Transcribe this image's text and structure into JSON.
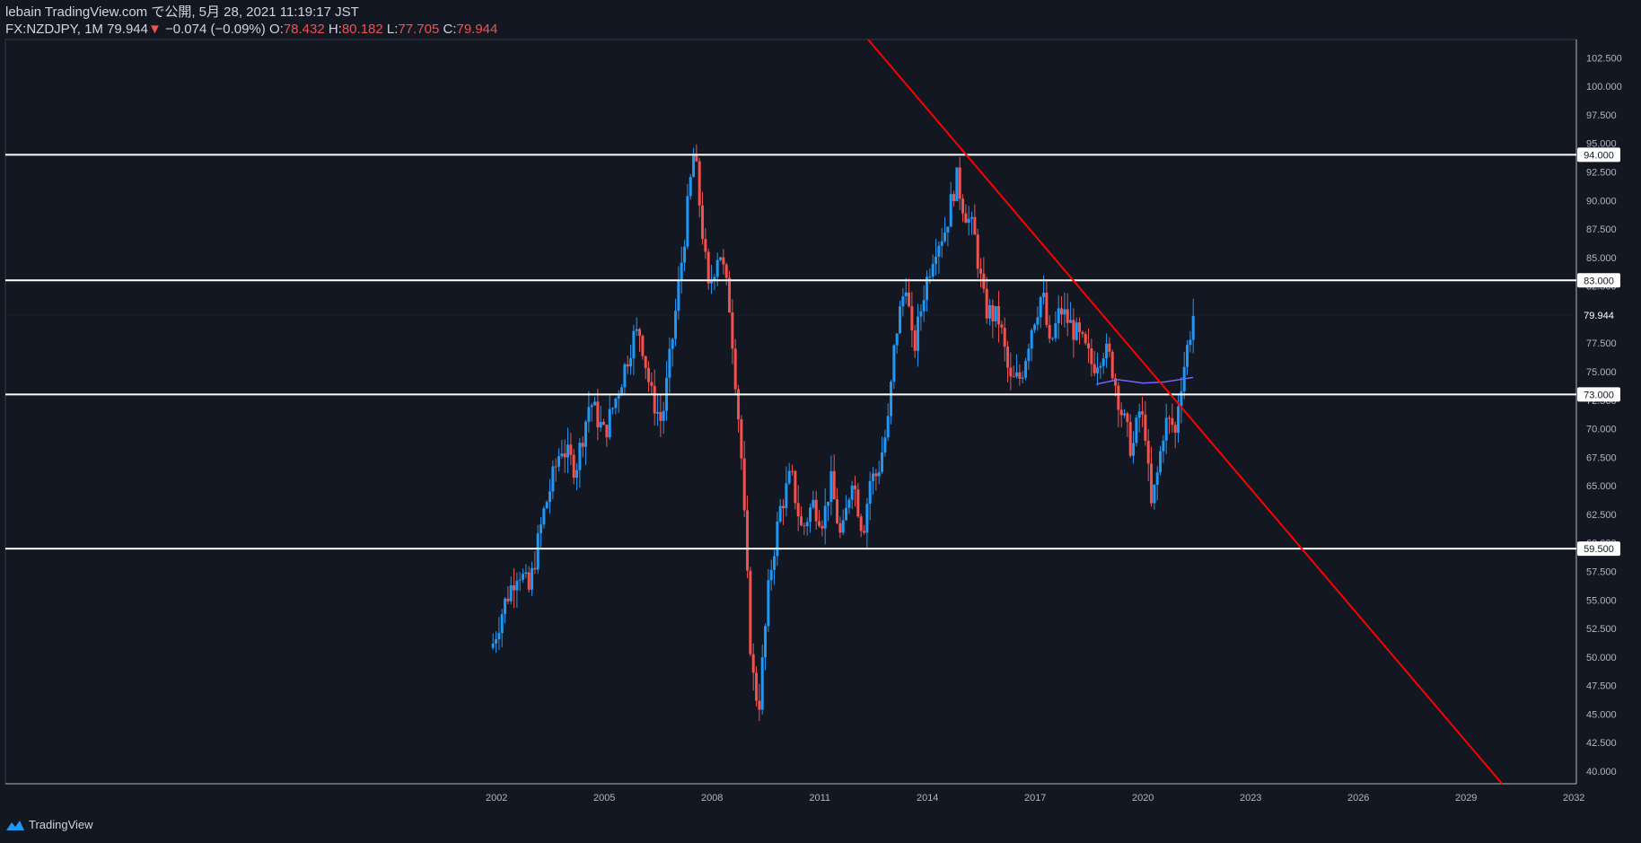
{
  "header": {
    "line1": "lebain TradingView.com で公開, 5月 28, 2021 11:19:17 JST",
    "symbol": "FX:NZDJPY, 1M",
    "last": "79.944",
    "arrow": "▼",
    "change": "−0.074 (−0.09%)",
    "o_label": "O:",
    "o_value": "78.432",
    "h_label": "H:",
    "h_value": "80.182",
    "l_label": "L:",
    "l_value": "77.705",
    "c_label": "C:",
    "c_value": "79.944"
  },
  "footer": {
    "brand": "TradingView"
  },
  "colors": {
    "background": "#131722",
    "up": "#2196f3",
    "down": "#ef5350",
    "axis_text": "#b2b5be",
    "hline": "#ffffff",
    "trendline": "#ff0000",
    "ma": "#7b61ff"
  },
  "chart_data": {
    "type": "candlestick",
    "symbol": "FX:NZDJPY",
    "timeframe": "1M",
    "y_ticks": [
      102.5,
      100,
      97.5,
      95,
      92.5,
      90,
      87.5,
      85,
      82.5,
      80,
      77.5,
      75,
      72.5,
      70,
      67.5,
      65,
      62.5,
      60,
      57.5,
      55,
      52.5,
      50,
      47.5,
      45,
      42.5,
      40
    ],
    "y_tick_labels": [
      "102.500",
      "100.000",
      "97.500",
      "95.000",
      "92.500",
      "90.000",
      "87.500",
      "85.000",
      "82.500",
      "80.000",
      "77.500",
      "75.000",
      "72.500",
      "70.000",
      "67.500",
      "65.000",
      "62.500",
      "60.000",
      "57.500",
      "55.000",
      "52.500",
      "50.000",
      "47.500",
      "45.000",
      "42.500",
      "40.000"
    ],
    "ylim": [
      38.9,
      104.1
    ],
    "x_ticks": [
      "2002",
      "2005",
      "2008",
      "2011",
      "2014",
      "2017",
      "2020",
      "2023",
      "2026",
      "2029",
      "2032"
    ],
    "xlim": [
      1988.32,
      2032.07
    ],
    "horizontal_levels": [
      {
        "value": 94.0,
        "label": "94.000"
      },
      {
        "value": 83.0,
        "label": "83.000"
      },
      {
        "value": 73.0,
        "label": "73.000"
      },
      {
        "value": 59.5,
        "label": "59.500"
      }
    ],
    "last_price": {
      "value": 79.944,
      "label": "79.944"
    },
    "trendline": {
      "points": [
        [
          2012.1,
          105.0
        ],
        [
          2030.0,
          38.9
        ]
      ]
    },
    "moving_average": [
      [
        2018.7,
        73.9
      ],
      [
        2019.3,
        74.3
      ],
      [
        2020.0,
        74.0
      ],
      [
        2020.6,
        74.1
      ],
      [
        2021.4,
        74.5
      ]
    ],
    "close_anchors": [
      [
        2001.9,
        51.2
      ],
      [
        2002.2,
        54.5
      ],
      [
        2002.6,
        57.8
      ],
      [
        2002.9,
        55.8
      ],
      [
        2003.3,
        62.5
      ],
      [
        2003.8,
        68.5
      ],
      [
        2004.2,
        66.5
      ],
      [
        2004.6,
        72.5
      ],
      [
        2005.0,
        69.5
      ],
      [
        2005.4,
        73.5
      ],
      [
        2005.8,
        78.0
      ],
      [
        2006.0,
        78.5
      ],
      [
        2006.3,
        73.0
      ],
      [
        2006.6,
        70.5
      ],
      [
        2006.9,
        78.0
      ],
      [
        2007.2,
        86.0
      ],
      [
        2007.5,
        94.5
      ],
      [
        2007.9,
        82.0
      ],
      [
        2008.2,
        86.0
      ],
      [
        2008.5,
        80.5
      ],
      [
        2008.8,
        68.5
      ],
      [
        2009.1,
        49.0
      ],
      [
        2009.3,
        45.5
      ],
      [
        2009.6,
        57.0
      ],
      [
        2009.9,
        63.0
      ],
      [
        2010.2,
        66.0
      ],
      [
        2010.5,
        61.0
      ],
      [
        2010.8,
        63.5
      ],
      [
        2011.1,
        62.0
      ],
      [
        2011.3,
        65.5
      ],
      [
        2011.6,
        60.0
      ],
      [
        2011.9,
        66.0
      ],
      [
        2012.2,
        61.0
      ],
      [
        2012.4,
        65.5
      ],
      [
        2012.6,
        66.0
      ],
      [
        2012.9,
        70.5
      ],
      [
        2013.1,
        78.0
      ],
      [
        2013.4,
        83.0
      ],
      [
        2013.6,
        76.5
      ],
      [
        2013.9,
        82.0
      ],
      [
        2014.2,
        86.0
      ],
      [
        2014.5,
        87.5
      ],
      [
        2014.8,
        92.0
      ],
      [
        2015.0,
        89.5
      ],
      [
        2015.3,
        87.0
      ],
      [
        2015.6,
        80.5
      ],
      [
        2016.0,
        79.5
      ],
      [
        2016.3,
        74.0
      ],
      [
        2016.6,
        74.5
      ],
      [
        2016.9,
        79.0
      ],
      [
        2017.2,
        82.0
      ],
      [
        2017.4,
        77.0
      ],
      [
        2017.7,
        80.5
      ],
      [
        2018.0,
        79.0
      ],
      [
        2018.3,
        77.5
      ],
      [
        2018.6,
        75.5
      ],
      [
        2018.9,
        77.0
      ],
      [
        2019.1,
        76.0
      ],
      [
        2019.4,
        71.5
      ],
      [
        2019.7,
        68.0
      ],
      [
        2019.9,
        71.5
      ],
      [
        2020.1,
        69.5
      ],
      [
        2020.2,
        62.5
      ],
      [
        2020.4,
        66.0
      ],
      [
        2020.6,
        70.5
      ],
      [
        2020.8,
        70.5
      ],
      [
        2020.9,
        69.5
      ],
      [
        2021.0,
        73.0
      ],
      [
        2021.2,
        76.5
      ],
      [
        2021.4,
        79.944
      ]
    ]
  }
}
